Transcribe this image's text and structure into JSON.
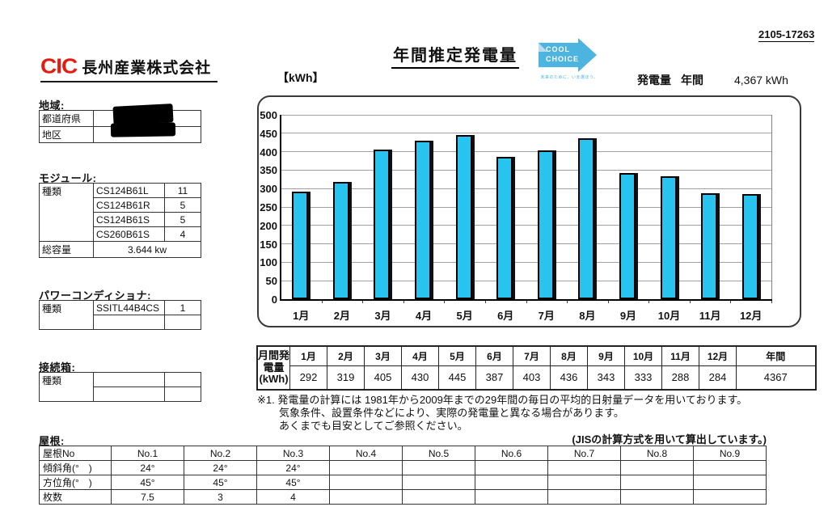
{
  "doc_number": "2105-17263",
  "company": {
    "logo_text": "CIC",
    "name": "長州産業株式会社"
  },
  "title": "年間推定発電量",
  "cool_choice": {
    "line1": "COOL",
    "line2": "CHOICE",
    "tagline": "未来のために、いま選ぼう。"
  },
  "annual_output": {
    "label": "発電量",
    "period_label": "年間",
    "value": "4,367 kWh"
  },
  "chart_data": {
    "type": "bar",
    "title": "年間推定発電量",
    "unit_label": "【kWh】",
    "categories": [
      "1月",
      "2月",
      "3月",
      "4月",
      "5月",
      "6月",
      "7月",
      "8月",
      "9月",
      "10月",
      "11月",
      "12月"
    ],
    "values": [
      292,
      319,
      405,
      430,
      445,
      387,
      403,
      436,
      343,
      333,
      288,
      284
    ],
    "annual_total": 4367,
    "xlabel": "",
    "ylabel": "kWh",
    "ylim": [
      0,
      500
    ],
    "ytick_step": 50,
    "grid": true,
    "legend": "none",
    "bar_color": "#29c3f0"
  },
  "monthly_table": {
    "row_header_lines": [
      "月間発",
      "電量",
      "(kWh)"
    ],
    "annual_label": "年間",
    "annual_value": "4367"
  },
  "sections": {
    "region": {
      "title": "地域:",
      "rows": [
        {
          "label": "都道府県",
          "redacted": true
        },
        {
          "label": "地区",
          "redacted": true
        }
      ]
    },
    "module": {
      "title": "モジュール:",
      "type_label": "種類",
      "items": [
        {
          "model": "CS124B61L",
          "qty": "11"
        },
        {
          "model": "CS124B61R",
          "qty": "5"
        },
        {
          "model": "CS124B61S",
          "qty": "5"
        },
        {
          "model": "CS260B61S",
          "qty": "4"
        }
      ],
      "capacity_label": "総容量",
      "capacity_value": "3.644 kw"
    },
    "pcs": {
      "title": "パワーコンディショナ:",
      "type_label": "種類",
      "items": [
        {
          "model": "SSITL44B4CS",
          "qty": "1"
        },
        {
          "model": "",
          "qty": ""
        }
      ]
    },
    "junction_box": {
      "title": "接続箱:",
      "type_label": "種類",
      "items": [
        {
          "model": "",
          "qty": ""
        },
        {
          "model": "",
          "qty": ""
        }
      ]
    }
  },
  "notes": [
    "※1. 発電量の計算には 1981年から2009年までの29年間の毎日の平均的日射量データを用いております。",
    "気象条件、設置条件などにより、実際の発電量と異なる場合があります。",
    "あくまでも目安としてご参照ください。"
  ],
  "jis_note": "(JISの計算方式を用いて算出しています。)",
  "roof": {
    "title": "屋根:",
    "header_label": "屋根No",
    "columns": [
      "No.1",
      "No.2",
      "No.3",
      "No.4",
      "No.5",
      "No.6",
      "No.7",
      "No.8",
      "No.9"
    ],
    "rows": [
      {
        "label": "傾斜角(°　)",
        "values": [
          "24°",
          "24°",
          "24°",
          "",
          "",
          "",
          "",
          "",
          ""
        ]
      },
      {
        "label": "方位角(°　)",
        "values": [
          "45°",
          "45°",
          "45°",
          "",
          "",
          "",
          "",
          "",
          ""
        ]
      },
      {
        "label": "枚数",
        "values": [
          "7.5",
          "3",
          "4",
          "",
          "",
          "",
          "",
          "",
          ""
        ]
      }
    ]
  }
}
